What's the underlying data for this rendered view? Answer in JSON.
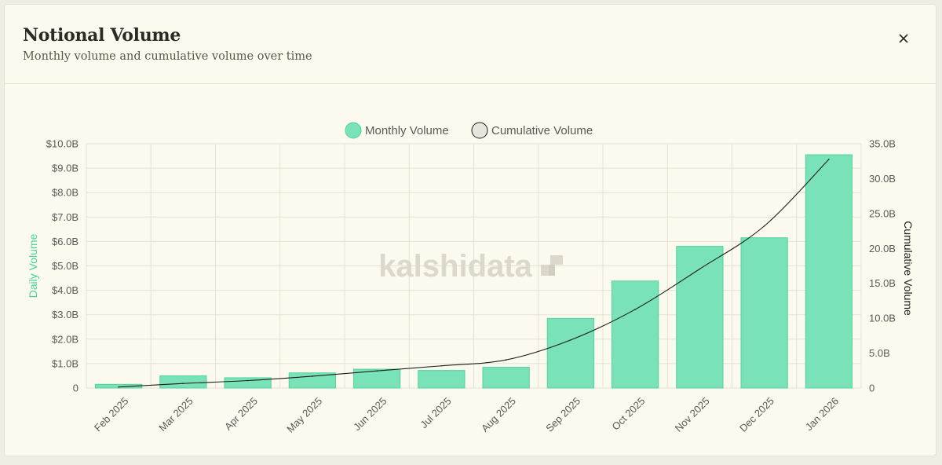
{
  "header": {
    "title": "Notional Volume",
    "subtitle": "Monthly volume and cumulative volume over time",
    "close_icon": "close-icon"
  },
  "colors": {
    "bar_fill": "#7ae2b8",
    "bar_stroke": "#4fd39f",
    "line": "#1d1d1d",
    "left_axis_label": "#44d39b",
    "grid": "#e4e1d2",
    "tick_text": "#595959"
  },
  "watermark": "kalshidata",
  "chart_data": {
    "type": "bar",
    "categories": [
      "Feb 2025",
      "Mar 2025",
      "Apr 2025",
      "May 2025",
      "Jun 2025",
      "Jul 2025",
      "Aug 2025",
      "Sep 2025",
      "Oct 2025",
      "Nov 2025",
      "Dec 2025",
      "Jan 2026"
    ],
    "legend": [
      "Monthly Volume",
      "Cumulative Volume"
    ],
    "legend_position": "top-center",
    "grid": true,
    "series": [
      {
        "name": "Monthly Volume",
        "type": "bar",
        "axis": "left",
        "values": [
          0.15,
          0.5,
          0.42,
          0.62,
          0.77,
          0.72,
          0.85,
          2.85,
          4.38,
          5.8,
          6.15,
          9.55
        ]
      },
      {
        "name": "Cumulative Volume",
        "type": "line",
        "axis": "right",
        "values": [
          0.15,
          0.65,
          1.07,
          1.69,
          2.46,
          3.18,
          4.03,
          6.88,
          11.26,
          17.06,
          23.21,
          32.76
        ]
      }
    ],
    "ylabel": "Daily Volume",
    "y2label": "Cumulative Volume",
    "ylim": [
      0,
      10
    ],
    "y2lim": [
      0,
      35
    ],
    "yticks": [
      "0",
      "$1.0B",
      "$2.0B",
      "$3.0B",
      "$4.0B",
      "$5.0B",
      "$6.0B",
      "$7.0B",
      "$8.0B",
      "$9.0B",
      "$10.0B"
    ],
    "y2ticks": [
      "0",
      "5.0B",
      "10.0B",
      "15.0B",
      "20.0B",
      "25.0B",
      "30.0B",
      "35.0B"
    ]
  }
}
